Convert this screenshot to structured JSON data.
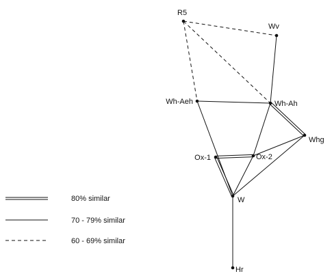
{
  "diagram": {
    "nodes": [
      {
        "id": "R5",
        "label": "R5"
      },
      {
        "id": "Wv",
        "label": "Wv"
      },
      {
        "id": "Wh-Aeh",
        "label": "Wh-Aeh"
      },
      {
        "id": "Wh-Ah",
        "label": "Wh-Ah"
      },
      {
        "id": "Whg",
        "label": "Whg"
      },
      {
        "id": "Ox-1",
        "label": "Ox-1"
      },
      {
        "id": "Ox-2",
        "label": "Ox-2"
      },
      {
        "id": "W",
        "label": "W"
      },
      {
        "id": "Hr",
        "label": "Hr"
      }
    ],
    "edges": [
      {
        "from": "R5",
        "to": "Wv",
        "similarity": "60-69"
      },
      {
        "from": "R5",
        "to": "Wh-Aeh",
        "similarity": "60-69"
      },
      {
        "from": "R5",
        "to": "Wh-Ah",
        "similarity": "60-69"
      },
      {
        "from": "Wv",
        "to": "Wh-Ah",
        "similarity": "70-79"
      },
      {
        "from": "Wh-Aeh",
        "to": "Wh-Ah",
        "similarity": "70-79"
      },
      {
        "from": "Wh-Aeh",
        "to": "W",
        "similarity": "70-79"
      },
      {
        "from": "Wh-Ah",
        "to": "Whg",
        "similarity": "80"
      },
      {
        "from": "Wh-Ah",
        "to": "Ox-2",
        "similarity": "70-79"
      },
      {
        "from": "Whg",
        "to": "Ox-2",
        "similarity": "70-79"
      },
      {
        "from": "Whg",
        "to": "W",
        "similarity": "70-79"
      },
      {
        "from": "Ox-1",
        "to": "Ox-2",
        "similarity": "80"
      },
      {
        "from": "Ox-1",
        "to": "W",
        "similarity": "80"
      },
      {
        "from": "Ox-2",
        "to": "W",
        "similarity": "70-79"
      },
      {
        "from": "W",
        "to": "Hr",
        "similarity": "70-79"
      }
    ]
  },
  "legend": {
    "items": [
      {
        "style": "double",
        "label": "80% similar"
      },
      {
        "style": "solid",
        "label": "70 - 79% similar"
      },
      {
        "style": "dashed",
        "label": "60 - 69% similar"
      }
    ]
  }
}
